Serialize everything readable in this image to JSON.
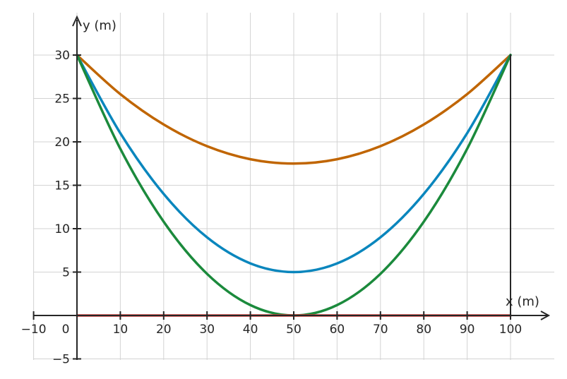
{
  "chart_data": {
    "type": "line",
    "title": "",
    "xlabel": "x (m)",
    "ylabel": "y (m)",
    "xlim": [
      -10,
      110
    ],
    "ylim": [
      -5,
      35
    ],
    "grid": true,
    "legend": "none",
    "x_ticks": [
      -10,
      0,
      10,
      20,
      30,
      40,
      50,
      60,
      70,
      80,
      90,
      100
    ],
    "x_tick_labels": [
      "−10",
      "0",
      "10",
      "20",
      "30",
      "40",
      "50",
      "60",
      "70",
      "80",
      "90",
      "100"
    ],
    "y_ticks": [
      -5,
      5,
      10,
      15,
      20,
      25,
      30
    ],
    "y_tick_labels": [
      "−5",
      "5",
      "10",
      "15",
      "20",
      "25",
      "30"
    ],
    "series": [
      {
        "color": "#c06500",
        "x": [
          0,
          10,
          20,
          30,
          40,
          50,
          60,
          70,
          80,
          90,
          100
        ],
        "y": [
          30,
          25.5,
          22,
          19.5,
          18,
          17.5,
          18,
          19.5,
          22,
          25.5,
          30
        ]
      },
      {
        "color": "#0a86bd",
        "x": [
          0,
          10,
          20,
          30,
          40,
          50,
          60,
          70,
          80,
          90,
          100
        ],
        "y": [
          30,
          21,
          14,
          9,
          6,
          5,
          6,
          9,
          14,
          21,
          30
        ]
      },
      {
        "color": "#1b8a3c",
        "x": [
          0,
          10,
          20,
          30,
          40,
          50,
          60,
          70,
          80,
          90,
          100
        ],
        "y": [
          30,
          19.2,
          10.8,
          4.8,
          1.2,
          0,
          1.2,
          4.8,
          10.8,
          19.2,
          30
        ]
      },
      {
        "color": "#d43f3a",
        "x": [
          0,
          100
        ],
        "y": [
          0,
          0
        ]
      },
      {
        "color": "#262626",
        "x": [
          100,
          100
        ],
        "y": [
          0,
          30
        ]
      }
    ]
  }
}
